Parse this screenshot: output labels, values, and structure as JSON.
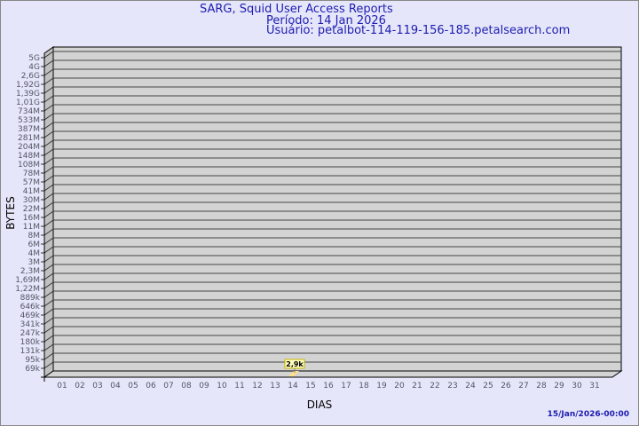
{
  "header": {
    "title": "SARG, Squid User Access Reports",
    "period": "Período: 14 Jan 2026",
    "user": "Usuário: petalbot-114-119-156-185.petalsearch.com"
  },
  "footer": {
    "timestamp": "15/Jan/2026-00:00"
  },
  "chart_data": {
    "type": "bar",
    "xlabel": "DIAS",
    "ylabel": "BYTES",
    "y_scale": "log",
    "grid": true,
    "categories": [
      "01",
      "02",
      "03",
      "04",
      "05",
      "06",
      "07",
      "08",
      "09",
      "10",
      "11",
      "12",
      "13",
      "14",
      "15",
      "16",
      "17",
      "18",
      "19",
      "20",
      "21",
      "22",
      "23",
      "24",
      "25",
      "26",
      "27",
      "28",
      "29",
      "30",
      "31"
    ],
    "y_tick_labels": [
      "5G",
      "4G",
      "2,6G",
      "1,92G",
      "1,39G",
      "1,01G",
      "734M",
      "533M",
      "387M",
      "281M",
      "204M",
      "148M",
      "108M",
      "78M",
      "57M",
      "41M",
      "30M",
      "22M",
      "16M",
      "11M",
      "8M",
      "6M",
      "4M",
      "3M",
      "2,3M",
      "1,69M",
      "1,22M",
      "889k",
      "646k",
      "469k",
      "341k",
      "247k",
      "180k",
      "131k",
      "95k",
      "69k"
    ],
    "series": [
      {
        "points": [
          {
            "day": "14",
            "value": 2900,
            "label": "2,9k"
          }
        ]
      }
    ],
    "colors": {
      "wall": "#d3d3d3",
      "side": "#c0c0c0",
      "bar": "#ffe08a",
      "label_bg": "#ffffc0",
      "label_border": "#c8b400",
      "text": "#555566",
      "title": "#1c1cb0"
    }
  }
}
